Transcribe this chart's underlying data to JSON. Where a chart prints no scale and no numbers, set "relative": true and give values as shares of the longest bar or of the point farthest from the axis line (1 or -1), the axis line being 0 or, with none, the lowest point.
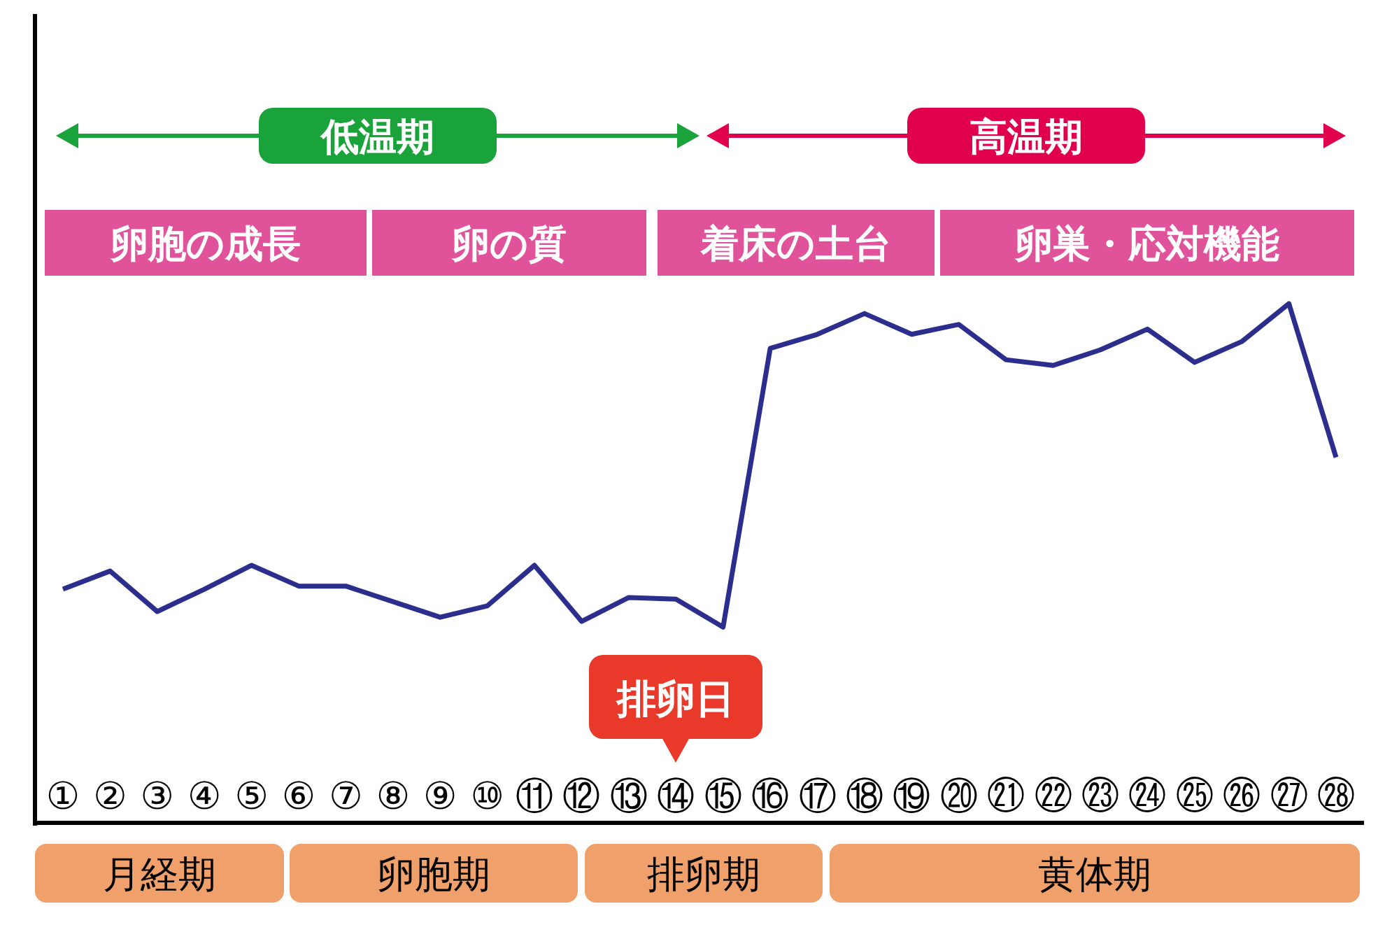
{
  "chart_data": {
    "type": "line",
    "relative": true,
    "categories": [
      "①",
      "②",
      "③",
      "④",
      "⑤",
      "⑥",
      "⑦",
      "⑧",
      "⑨",
      "⑩",
      "⑪",
      "⑫",
      "⑬",
      "⑭",
      "⑮",
      "⑯",
      "⑰",
      "⑱",
      "⑲",
      "⑳",
      "㉑",
      "㉒",
      "㉓",
      "㉔",
      "㉕",
      "㉖",
      "㉗",
      "㉘"
    ],
    "series": [
      {
        "color": "#2b2e8c",
        "values": [
          0.45,
          0.485,
          0.407,
          0.45,
          0.496,
          0.456,
          0.456,
          0.426,
          0.396,
          0.418,
          0.496,
          0.388,
          0.434,
          0.431,
          0.377,
          0.914,
          0.941,
          0.981,
          0.941,
          0.96,
          0.892,
          0.881,
          0.911,
          0.951,
          0.887,
          0.927,
          1,
          0.704
        ]
      }
    ],
    "annotations": [
      "低温期",
      "高温期",
      "卵胞の成長",
      "卵の質",
      "着床の土台",
      "卵巣・応対機能",
      "排卵日",
      "月経期",
      "卵胞期",
      "排卵期",
      "黄体期"
    ]
  }
}
